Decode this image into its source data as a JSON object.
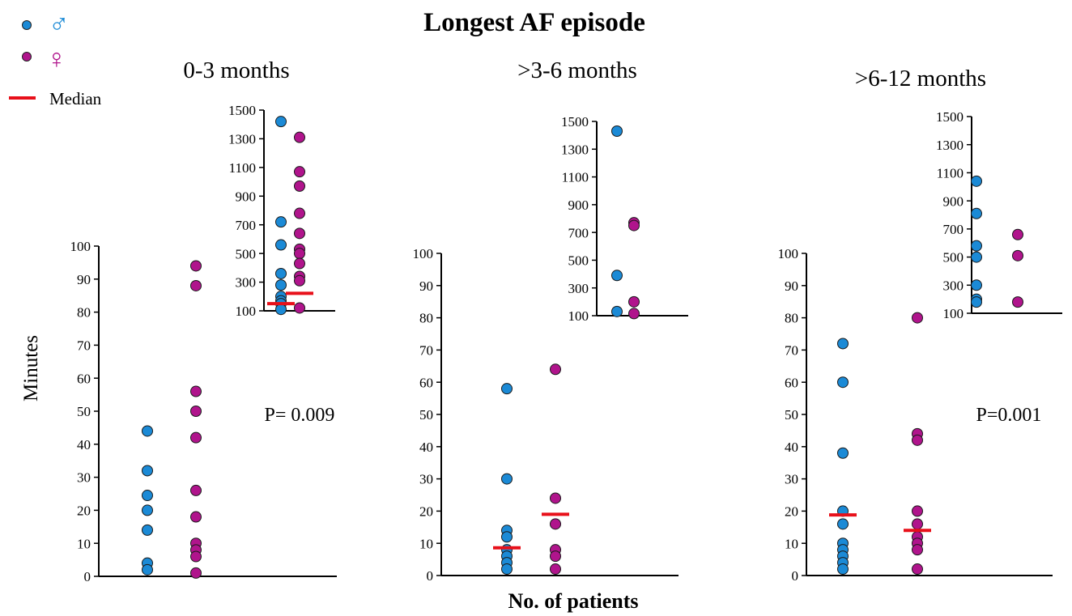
{
  "title": "Longest AF episode",
  "ylabel": "Minutes",
  "xlabel": "No. of patients",
  "legend": {
    "male_symbol": "♂",
    "female_symbol": "♀",
    "median_label": "Median",
    "placement": "top-left"
  },
  "colors": {
    "male": "#1b8ad6",
    "female": "#b0148c",
    "median": "#e8101a",
    "axis": "#000000"
  },
  "chart_data": [
    {
      "type": "scatter",
      "title": "0-3 months",
      "p_value": "P= 0.009",
      "main": {
        "ylim": [
          0,
          100
        ],
        "yticks": [
          "0",
          "10",
          "20",
          "30",
          "40",
          "50",
          "60",
          "70",
          "80",
          "90",
          "100"
        ],
        "series": [
          {
            "name": "♂",
            "values": [
              44,
              32,
              24.5,
              20,
              14,
              4,
              2
            ]
          },
          {
            "name": "♀",
            "values": [
              94,
              88,
              56,
              50,
              42,
              26,
              18,
              10,
              8,
              6,
              1
            ]
          }
        ],
        "medians": []
      },
      "inset": {
        "ylim": [
          100,
          1500
        ],
        "yticks": [
          "100",
          "300",
          "500",
          "700",
          "900",
          "1100",
          "1300",
          "1500"
        ],
        "series": [
          {
            "name": "♂",
            "values": [
              1420,
              720,
              560,
              360,
              280,
              200,
              170,
              150,
              110
            ]
          },
          {
            "name": "♀",
            "values": [
              1310,
              1070,
              970,
              780,
              640,
              530,
              500,
              430,
              340,
              310,
              120
            ]
          }
        ],
        "medians": [
          {
            "series": "♂",
            "value": 150
          },
          {
            "series": "♀",
            "value": 222
          }
        ]
      }
    },
    {
      "type": "scatter",
      "title": ">3-6 months",
      "p_value": "",
      "main": {
        "ylim": [
          0,
          100
        ],
        "yticks": [
          "0",
          "10",
          "20",
          "30",
          "40",
          "50",
          "60",
          "70",
          "80",
          "90",
          "100"
        ],
        "series": [
          {
            "name": "♂",
            "values": [
              58,
              30,
              14,
              12,
              8,
              6,
              4,
              2
            ]
          },
          {
            "name": "♀",
            "values": [
              64,
              24,
              16,
              8,
              6,
              2
            ]
          }
        ],
        "medians": [
          {
            "series": "♂",
            "value": 8.6
          },
          {
            "series": "♀",
            "value": 19
          }
        ]
      },
      "inset": {
        "ylim": [
          100,
          1500
        ],
        "yticks": [
          "100",
          "300",
          "500",
          "700",
          "900",
          "1100",
          "1300",
          "1500"
        ],
        "series": [
          {
            "name": "♂",
            "values": [
              1430,
              390,
              130
            ]
          },
          {
            "name": "♀",
            "values": [
              770,
              750,
              200,
              115
            ]
          }
        ],
        "medians": []
      }
    },
    {
      "type": "scatter",
      "title": ">6-12 months",
      "p_value": "P=0.001",
      "main": {
        "ylim": [
          0,
          100
        ],
        "yticks": [
          "0",
          "10",
          "20",
          "30",
          "40",
          "50",
          "60",
          "70",
          "80",
          "90",
          "100"
        ],
        "series": [
          {
            "name": "♂",
            "values": [
              72,
              60,
              38,
              20,
              16,
              10,
              8,
              6,
              4,
              2
            ]
          },
          {
            "name": "♀",
            "values": [
              80,
              44,
              42,
              20,
              16,
              12,
              10,
              8,
              2
            ]
          }
        ],
        "medians": [
          {
            "series": "♂",
            "value": 18.8
          },
          {
            "series": "♀",
            "value": 14
          }
        ]
      },
      "inset": {
        "ylim": [
          100,
          1500
        ],
        "yticks": [
          "100",
          "300",
          "500",
          "700",
          "900",
          "1100",
          "1300",
          "1500"
        ],
        "series": [
          {
            "name": "♂",
            "values": [
              1040,
              810,
              580,
              500,
              300,
              200,
              180
            ]
          },
          {
            "name": "♀",
            "values": [
              660,
              510,
              180
            ]
          }
        ],
        "medians": []
      }
    }
  ]
}
